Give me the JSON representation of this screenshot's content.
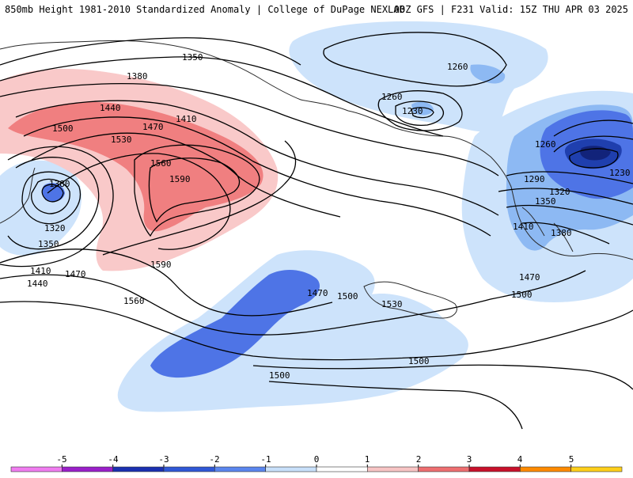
{
  "header": {
    "title_left": "850mb Height 1981-2010 Standardized Anomaly | College of DuPage NEXLAB",
    "title_right": "00Z GFS | F231 Valid: 15Z THU APR 03 2025"
  },
  "contour_labels": [
    "1350",
    "1380",
    "1260",
    "1260",
    "1230",
    "1440",
    "1470",
    "1410",
    "1500",
    "1530",
    "1560",
    "1590",
    "1380",
    "1320",
    "1350",
    "1410",
    "1440",
    "1470",
    "1590",
    "1560",
    "1470",
    "1500",
    "1530",
    "1500",
    "1500",
    "1260",
    "1290",
    "1230",
    "1320",
    "1350",
    "1410",
    "1380",
    "1470",
    "1500"
  ],
  "colorbar": {
    "tick_labels": [
      "-5",
      "-4",
      "-3",
      "-2",
      "-1",
      "0",
      "1",
      "2",
      "3",
      "4",
      "5"
    ],
    "colors": [
      "#f07cf0",
      "#9a1fc9",
      "#1a2fb0",
      "#2f57d6",
      "#5a86ee",
      "#c8e0fa",
      "#ffffff",
      "#f7c4c4",
      "#ee6e70",
      "#c8102a",
      "#ff8a00",
      "#ffcf1a"
    ]
  },
  "legend_colors": {
    "neg1": "#cde3fb",
    "neg2": "#8db9f3",
    "neg3": "#4e74e6",
    "neg4": "#1f3fae",
    "pos1": "#f9c9c9",
    "pos2": "#f07f80"
  }
}
